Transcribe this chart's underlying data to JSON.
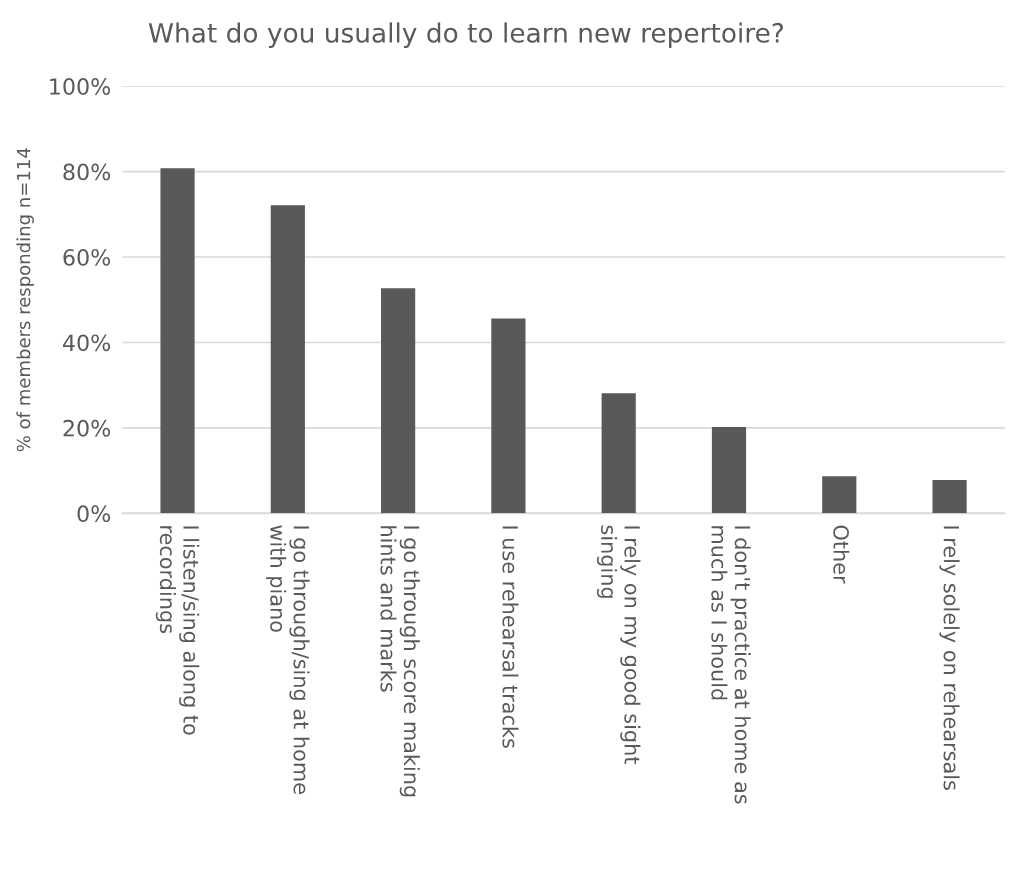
{
  "chart_data": {
    "type": "bar",
    "title": "What do you usually do to learn new repertoire?",
    "ylabel": "% of members responding n=114",
    "categories": [
      "I listen/sing along to\nrecordings",
      "I go through/sing at home\nwith piano",
      "I go through score making\nhints and marks",
      "I use rehearsal tracks",
      "I rely on my good sight\nsinging",
      "I don't practice at home as\nmuch as I should",
      "Other",
      "I rely solely on rehearsals"
    ],
    "values": [
      80.8,
      72.1,
      52.7,
      45.6,
      28.1,
      20.2,
      8.7,
      7.8
    ],
    "color": "#595959",
    "ylim": [
      0,
      100
    ],
    "yticks": [
      {
        "value": 0,
        "label": "0%"
      },
      {
        "value": 20,
        "label": "20%"
      },
      {
        "value": 40,
        "label": "40%"
      },
      {
        "value": 60,
        "label": "60%"
      },
      {
        "value": 80,
        "label": "80%"
      },
      {
        "value": 100,
        "label": "100%"
      }
    ],
    "grid": "y"
  }
}
